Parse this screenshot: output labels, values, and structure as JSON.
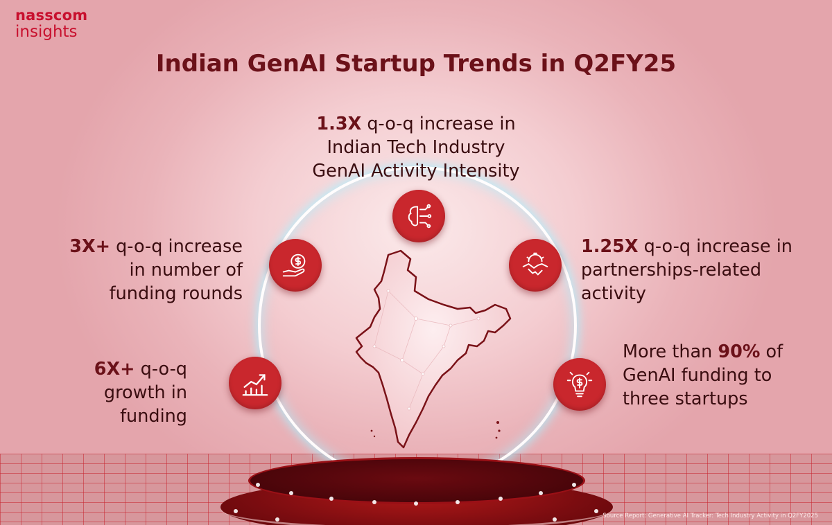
{
  "logo": {
    "line1": "nasscom",
    "line2": "insights"
  },
  "title": "Indian GenAI Startup Trends in Q2FY25",
  "stats": {
    "top": {
      "highlight": "1.3X",
      "line1": " q-o-q increase in",
      "line2": "Indian Tech Industry",
      "line3": "GenAI Activity Intensity",
      "icon": "ai-brain-icon"
    },
    "left_top": {
      "highlight": "3X+",
      "line1": " q-o-q increase",
      "line2": "in number of",
      "line3": "funding rounds",
      "icon": "hand-coin-icon"
    },
    "left_bottom": {
      "highlight": "6X+",
      "line1": " q-o-q",
      "line2": "growth in",
      "line3": "funding",
      "icon": "growth-chart-icon"
    },
    "right_top": {
      "highlight": "1.25X",
      "line1": " q-o-q increase in",
      "line2": "partnerships-related",
      "line3": "activity",
      "icon": "handshake-gear-icon"
    },
    "right_bottom": {
      "prefix": "More than ",
      "highlight": "90%",
      "suffix": " of",
      "line2": "GenAI funding to",
      "line3": "three startups",
      "icon": "lightbulb-dollar-icon"
    }
  },
  "source": "Source Report: Generative AI Tracker: Tech Industry Activity in Q2FY2025",
  "colors": {
    "brand_red": "#c8102e",
    "circle_red": "#c9272d",
    "title_maroon": "#6b1119",
    "ring_glow": "#aaf0ff"
  }
}
